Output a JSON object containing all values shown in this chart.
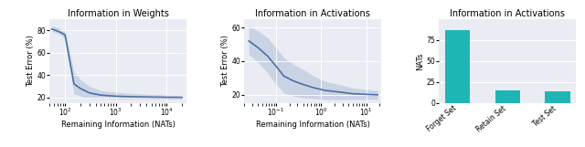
{
  "plot1": {
    "title": "Information in Weights",
    "xlabel": "Remaining Information (NATs)",
    "ylabel": "Test Error (%)",
    "line_color": "#4c6fa5",
    "fill_color": "#b0c0d8",
    "bg_color": "#eaecf4",
    "x": [
      55,
      75,
      100,
      150,
      200,
      300,
      500,
      1000,
      2000,
      5000,
      10000,
      20000
    ],
    "y_mean": [
      81,
      79,
      76,
      32,
      28,
      24,
      22,
      21,
      20.5,
      20.2,
      20.0,
      19.9
    ],
    "y_low": [
      79,
      77,
      73,
      23,
      21,
      19,
      19,
      18.5,
      18.5,
      18.5,
      18.5,
      18.5
    ],
    "y_high": [
      84,
      82,
      80,
      43,
      36,
      30,
      26,
      24.5,
      23.5,
      22.5,
      22.0,
      21.5
    ],
    "xlim_log": [
      50,
      25000
    ],
    "ylim": [
      15,
      90
    ],
    "yticks": [
      20,
      40,
      60,
      80
    ]
  },
  "plot2": {
    "title": "Information in Activations",
    "xlabel": "Remaining Information (NATs)",
    "ylabel": "Test Error (%)",
    "line_color": "#4c6fa5",
    "fill_color": "#b0c0d8",
    "bg_color": "#eaecf4",
    "x": [
      0.025,
      0.04,
      0.065,
      0.1,
      0.15,
      0.25,
      0.4,
      0.7,
      1.2,
      2.5,
      5,
      10,
      18
    ],
    "y_mean": [
      52,
      48,
      43,
      37,
      31,
      28,
      26,
      24,
      22.5,
      21.5,
      20.5,
      20.1,
      19.8
    ],
    "y_low": [
      44,
      39,
      33,
      26,
      21,
      19,
      18,
      17.5,
      17,
      17,
      17,
      17,
      17
    ],
    "y_high": [
      61,
      58,
      54,
      48,
      42,
      38,
      35,
      31,
      28,
      26,
      24,
      23,
      22.5
    ],
    "xlim_log": [
      0.02,
      22
    ],
    "ylim": [
      15,
      65
    ],
    "yticks": [
      20,
      40,
      60
    ]
  },
  "plot3": {
    "title": "Information in Activations",
    "ylabel": "NATs",
    "categories": [
      "Forget Set",
      "Retain Set",
      "Test Set"
    ],
    "values": [
      87,
      15,
      14
    ],
    "bar_color": "#20b5b5",
    "bg_color": "#eaecf4",
    "ylim": [
      0,
      100
    ],
    "yticks": [
      0,
      25,
      50,
      75
    ]
  },
  "fig_width": 6.4,
  "fig_height": 1.61,
  "dpi": 100
}
